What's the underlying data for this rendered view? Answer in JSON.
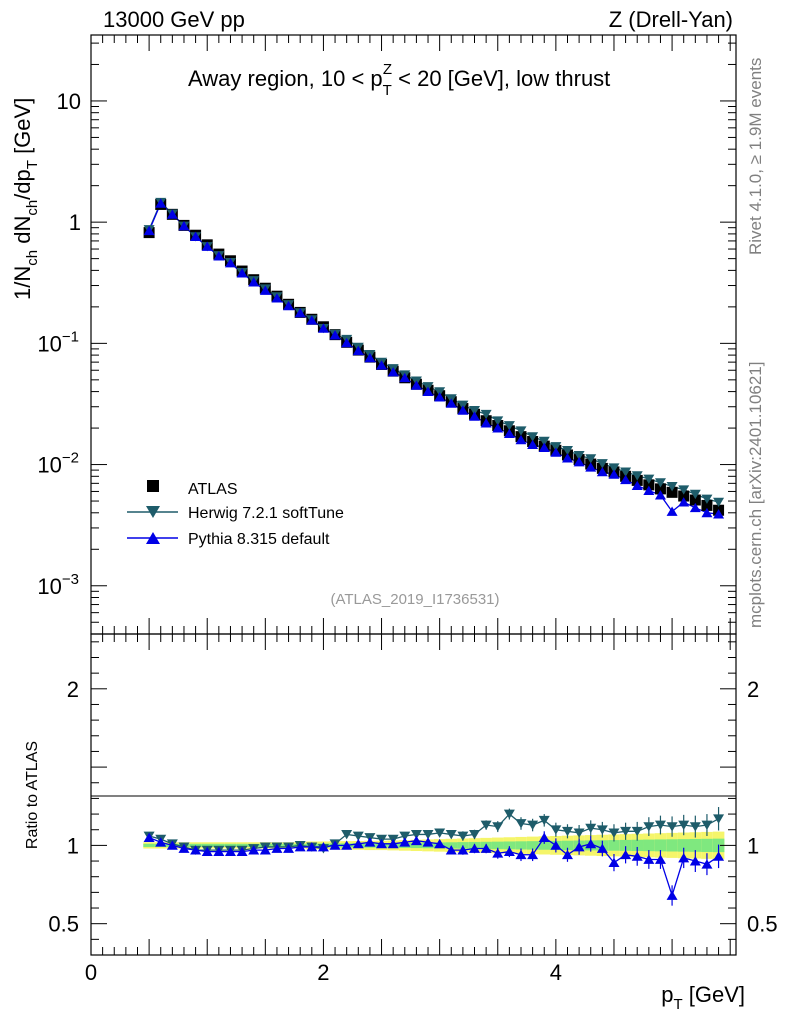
{
  "header": {
    "left": "13000 GeV pp",
    "right": "Z (Drell-Yan)"
  },
  "side_text": {
    "top": "Rivet 4.1.0, ≥ 1.9M events",
    "bottom": "mcplots.cern.ch [arXiv:2401.10621]"
  },
  "chart_data": [
    {
      "type": "scatter",
      "title": "Away region, 10 < p_T^Z < 20 [GeV], low thrust",
      "title_parts": {
        "pre": "Away region, 10 < p",
        "sub": "T",
        "sup": "Z",
        "post": " < 20 [GeV], low thrust"
      },
      "ylabel": "1/N_ch dN_ch/dp_T [GeV]",
      "ylabel_parts": {
        "a": "1/N",
        "a_sub": "ch",
        "b": " dN",
        "b_sub": "ch",
        "c": "/dp",
        "c_sub": "T",
        "d": " [GeV]"
      },
      "yscale": "log",
      "ylim": [
        0.0004,
        35
      ],
      "xlim": [
        0,
        5.55
      ],
      "y_ticks": [
        {
          "value": 10,
          "label": "10",
          "exp": ""
        },
        {
          "value": 1,
          "label": "1",
          "exp": ""
        },
        {
          "value": 0.1,
          "label": "10",
          "exp": "−1"
        },
        {
          "value": 0.01,
          "label": "10",
          "exp": "−2"
        },
        {
          "value": 0.001,
          "label": "10",
          "exp": "−3"
        }
      ],
      "watermark": "(ATLAS_2019_I1736531)",
      "legend": [
        {
          "name": "ATLAS",
          "marker": "square",
          "color": "#000000"
        },
        {
          "name": "Herwig 7.2.1 softTune",
          "marker": "triangle-down",
          "color": "#1e5c6a"
        },
        {
          "name": "Pythia 8.315 default",
          "marker": "triangle-up",
          "color": "#0000e6"
        }
      ],
      "x": [
        0.5,
        0.6,
        0.7,
        0.8,
        0.9,
        1.0,
        1.1,
        1.2,
        1.3,
        1.4,
        1.5,
        1.6,
        1.7,
        1.8,
        1.9,
        2.0,
        2.1,
        2.2,
        2.3,
        2.4,
        2.5,
        2.6,
        2.7,
        2.8,
        2.9,
        3.0,
        3.1,
        3.2,
        3.3,
        3.4,
        3.5,
        3.6,
        3.7,
        3.8,
        3.9,
        4.0,
        4.1,
        4.2,
        4.3,
        4.4,
        4.5,
        4.6,
        4.7,
        4.8,
        4.9,
        5.0,
        5.1,
        5.2,
        5.3,
        5.4
      ],
      "series": [
        {
          "name": "ATLAS",
          "values": [
            0.82,
            1.4,
            1.16,
            0.94,
            0.78,
            0.65,
            0.545,
            0.48,
            0.395,
            0.335,
            0.285,
            0.245,
            0.21,
            0.18,
            0.158,
            0.137,
            0.118,
            0.102,
            0.088,
            0.077,
            0.067,
            0.059,
            0.052,
            0.046,
            0.041,
            0.037,
            0.033,
            0.029,
            0.026,
            0.023,
            0.021,
            0.019,
            0.017,
            0.0155,
            0.0142,
            0.0131,
            0.012,
            0.011,
            0.0101,
            0.0093,
            0.0087,
            0.008,
            0.0074,
            0.0068,
            0.0063,
            0.0059,
            0.0055,
            0.0051,
            0.0046,
            0.0042
          ]
        },
        {
          "name": "Herwig 7.2.1 softTune",
          "values": [
            0.87,
            1.46,
            1.17,
            0.93,
            0.76,
            0.63,
            0.53,
            0.465,
            0.385,
            0.33,
            0.282,
            0.243,
            0.209,
            0.179,
            0.157,
            0.133,
            0.119,
            0.108,
            0.093,
            0.081,
            0.07,
            0.062,
            0.055,
            0.049,
            0.044,
            0.04,
            0.035,
            0.031,
            0.028,
            0.026,
            0.023,
            0.021,
            0.019,
            0.017,
            0.0156,
            0.0141,
            0.0131,
            0.0119,
            0.0112,
            0.0102,
            0.0094,
            0.0087,
            0.0081,
            0.0076,
            0.0071,
            0.0066,
            0.0062,
            0.0057,
            0.0052,
            0.0049
          ]
        },
        {
          "name": "Pythia 8.315 default",
          "values": [
            0.85,
            1.43,
            1.16,
            0.93,
            0.76,
            0.63,
            0.525,
            0.46,
            0.38,
            0.32,
            0.273,
            0.236,
            0.204,
            0.178,
            0.155,
            0.133,
            0.117,
            0.101,
            0.087,
            0.076,
            0.066,
            0.058,
            0.052,
            0.045,
            0.04,
            0.036,
            0.032,
            0.028,
            0.025,
            0.022,
            0.02,
            0.018,
            0.016,
            0.0146,
            0.0138,
            0.0126,
            0.0113,
            0.0105,
            0.0095,
            0.0087,
            0.0083,
            0.0075,
            0.0067,
            0.0061,
            0.0056,
            0.0041,
            0.0049,
            0.0044,
            0.004,
            0.0039
          ]
        }
      ]
    },
    {
      "type": "scatter",
      "title": "",
      "xlabel": "p_T [GeV]",
      "xlabel_parts": {
        "a": "p",
        "a_sub": "T",
        "b": " [GeV]"
      },
      "ylabel": "Ratio to ATLAS",
      "ylim": [
        0.3,
        2.35
      ],
      "xlim": [
        0,
        5.55
      ],
      "x_ticks": [
        0,
        2,
        4
      ],
      "y_ticks": [
        0.5,
        1,
        2
      ],
      "y_tick_labels": [
        "0.5",
        "1",
        "2"
      ],
      "band_green_halfwidth": [
        0.01,
        0.01,
        0.01,
        0.01,
        0.01,
        0.01,
        0.01,
        0.01,
        0.01,
        0.01,
        0.01,
        0.01,
        0.01,
        0.01,
        0.012,
        0.012,
        0.013,
        0.013,
        0.014,
        0.014,
        0.015,
        0.015,
        0.016,
        0.017,
        0.018,
        0.019,
        0.02,
        0.021,
        0.022,
        0.023,
        0.024,
        0.025,
        0.026,
        0.027,
        0.028,
        0.029,
        0.03,
        0.031,
        0.032,
        0.033,
        0.034,
        0.035,
        0.036,
        0.037,
        0.038,
        0.039,
        0.04,
        0.041,
        0.042,
        0.043
      ],
      "band_yellow_halfwidth": [
        0.02,
        0.02,
        0.02,
        0.02,
        0.02,
        0.02,
        0.02,
        0.02,
        0.02,
        0.02,
        0.02,
        0.02,
        0.02,
        0.02,
        0.025,
        0.025,
        0.027,
        0.027,
        0.028,
        0.03,
        0.03,
        0.032,
        0.034,
        0.036,
        0.038,
        0.04,
        0.042,
        0.044,
        0.046,
        0.048,
        0.05,
        0.052,
        0.054,
        0.056,
        0.058,
        0.06,
        0.062,
        0.064,
        0.066,
        0.068,
        0.07,
        0.072,
        0.074,
        0.076,
        0.078,
        0.08,
        0.082,
        0.084,
        0.086,
        0.088
      ],
      "series": [
        {
          "name": "Herwig 7.2.1 softTune",
          "values": [
            1.06,
            1.04,
            1.01,
            0.99,
            0.97,
            0.97,
            0.97,
            0.97,
            0.97,
            0.98,
            0.99,
            0.99,
            0.99,
            1.0,
            0.99,
            0.98,
            1.01,
            1.07,
            1.06,
            1.05,
            1.04,
            1.04,
            1.06,
            1.07,
            1.07,
            1.08,
            1.07,
            1.06,
            1.07,
            1.13,
            1.12,
            1.2,
            1.14,
            1.13,
            1.16,
            1.1,
            1.09,
            1.08,
            1.11,
            1.1,
            1.08,
            1.09,
            1.09,
            1.12,
            1.13,
            1.12,
            1.13,
            1.12,
            1.13,
            1.17
          ],
          "err": [
            0.01,
            0.01,
            0.01,
            0.01,
            0.01,
            0.01,
            0.01,
            0.01,
            0.01,
            0.01,
            0.01,
            0.01,
            0.01,
            0.01,
            0.015,
            0.015,
            0.015,
            0.015,
            0.02,
            0.02,
            0.02,
            0.02,
            0.02,
            0.02,
            0.025,
            0.025,
            0.025,
            0.03,
            0.03,
            0.03,
            0.035,
            0.035,
            0.04,
            0.04,
            0.04,
            0.045,
            0.045,
            0.05,
            0.05,
            0.05,
            0.055,
            0.055,
            0.06,
            0.06,
            0.06,
            0.065,
            0.065,
            0.07,
            0.07,
            0.075
          ]
        },
        {
          "name": "Pythia 8.315 default",
          "values": [
            1.05,
            1.02,
            1.0,
            0.98,
            0.97,
            0.96,
            0.96,
            0.96,
            0.96,
            0.97,
            0.97,
            0.98,
            0.98,
            0.99,
            0.99,
            0.99,
            1.0,
            1.0,
            1.01,
            1.02,
            1.01,
            1.01,
            1.02,
            1.03,
            1.02,
            1.01,
            0.97,
            0.97,
            0.98,
            0.98,
            0.95,
            0.96,
            0.94,
            0.94,
            1.05,
            1.0,
            0.94,
            0.99,
            1.01,
            0.98,
            0.89,
            0.94,
            0.93,
            0.91,
            0.91,
            0.68,
            0.92,
            0.9,
            0.88,
            0.93
          ],
          "err": [
            0.01,
            0.01,
            0.01,
            0.01,
            0.01,
            0.01,
            0.01,
            0.01,
            0.01,
            0.01,
            0.01,
            0.01,
            0.01,
            0.01,
            0.015,
            0.015,
            0.015,
            0.015,
            0.02,
            0.02,
            0.02,
            0.02,
            0.02,
            0.02,
            0.025,
            0.025,
            0.025,
            0.03,
            0.03,
            0.03,
            0.035,
            0.035,
            0.04,
            0.04,
            0.04,
            0.045,
            0.045,
            0.05,
            0.05,
            0.05,
            0.055,
            0.055,
            0.06,
            0.06,
            0.06,
            0.065,
            0.065,
            0.07,
            0.07,
            0.075
          ]
        }
      ]
    }
  ]
}
